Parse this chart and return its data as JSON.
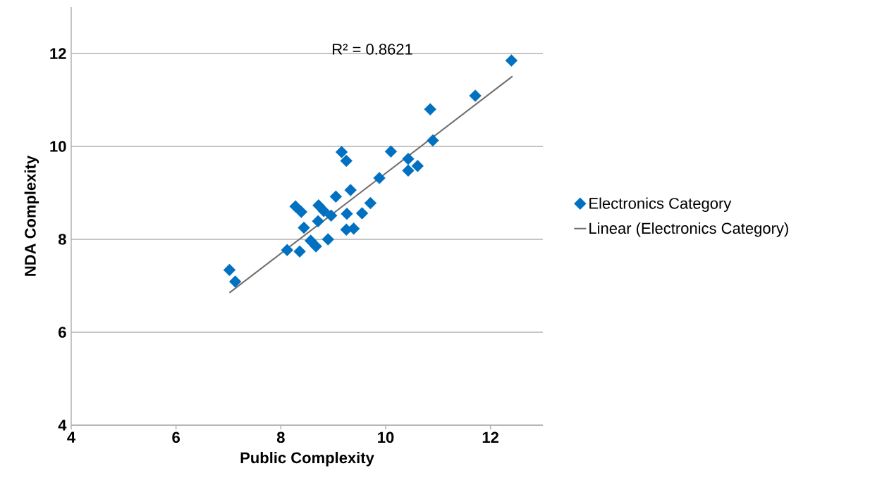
{
  "chart_data": {
    "type": "scatter",
    "xlabel": "Public Complexity",
    "ylabel": "NDA Complexity",
    "xlim": [
      4,
      13
    ],
    "ylim": [
      4,
      13
    ],
    "xticks": [
      4,
      6,
      8,
      10,
      12
    ],
    "yticks": [
      4,
      6,
      8,
      10,
      12
    ],
    "grid": "y",
    "legend": "right",
    "annotations": [
      "R² = 0.8621"
    ],
    "series": [
      {
        "name": "Electronics Category",
        "color": "#0070c0",
        "marker": "diamond",
        "x": [
          7.02,
          7.13,
          8.12,
          8.36,
          8.57,
          8.67,
          8.9,
          8.44,
          8.28,
          8.39,
          8.72,
          8.71,
          8.82,
          8.96,
          9.05,
          9.33,
          9.26,
          9.25,
          9.39,
          9.55,
          9.71,
          9.16,
          9.25,
          9.88,
          10.1,
          10.43,
          10.43,
          10.61,
          11.71,
          10.85,
          10.9,
          12.4
        ],
        "values": [
          7.34,
          7.09,
          7.77,
          7.74,
          7.97,
          7.85,
          8.0,
          8.25,
          8.71,
          8.59,
          8.73,
          8.39,
          8.61,
          8.51,
          8.92,
          9.06,
          8.55,
          8.21,
          8.23,
          8.56,
          8.78,
          9.88,
          9.69,
          9.32,
          9.89,
          9.73,
          9.48,
          9.58,
          11.09,
          10.8,
          10.13,
          11.85
        ]
      },
      {
        "name": "Linear (Electronics Category)",
        "type": "line",
        "marker": "none",
        "color": "#6e6e6e",
        "x": [
          7.02,
          12.42
        ],
        "values": [
          6.85,
          11.51
        ]
      }
    ]
  }
}
